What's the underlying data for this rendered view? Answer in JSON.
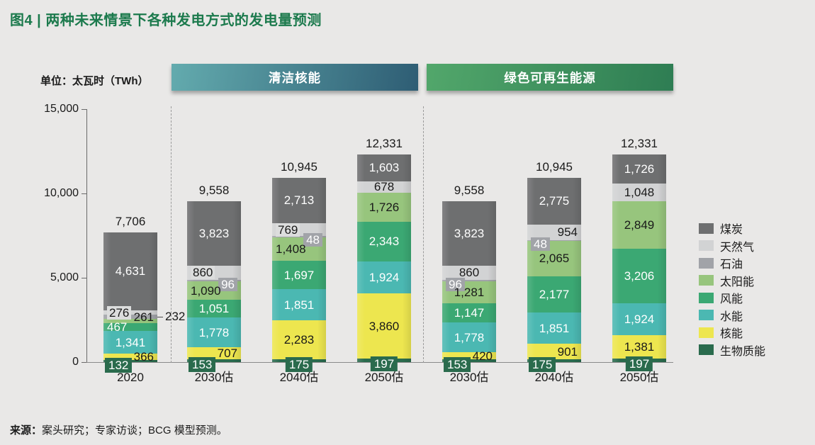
{
  "title": "图4 | 两种未来情景下各种发电方式的发电量预测",
  "unit_label": "单位：太瓦时（TWh）",
  "source": {
    "prefix": "来源：",
    "text": "案头研究；专家访谈；BCG 模型预测。"
  },
  "colors": {
    "background": "#e9e8e7",
    "title_green": "#1c7a4d",
    "axis": "#6a6a6a",
    "baseline": "#8a8a8a",
    "badge_dark_green": "#2a6b4d",
    "badge_gray": "#a1a3a8",
    "badge_light": "#dcdddd"
  },
  "scenario_banners": [
    {
      "label": "清洁核能",
      "gradient_from": "#63abae",
      "gradient_to": "#2e5d74"
    },
    {
      "label": "绿色可再生能源",
      "gradient_from": "#52a76b",
      "gradient_to": "#2e7d53"
    }
  ],
  "legend": [
    {
      "label": "煤炭",
      "color": "#6e6f70"
    },
    {
      "label": "天然气",
      "color": "#d2d3d4"
    },
    {
      "label": "石油",
      "color": "#a1a3a8"
    },
    {
      "label": "太阳能",
      "color": "#97c57d"
    },
    {
      "label": "风能",
      "color": "#3ba873"
    },
    {
      "label": "水能",
      "color": "#4bb8b2"
    },
    {
      "label": "核能",
      "color": "#ede64f"
    },
    {
      "label": "生物质能",
      "color": "#2a6b4d"
    }
  ],
  "chart_data": {
    "type": "bar",
    "subtype": "stacked",
    "ylim": [
      0,
      15000
    ],
    "grid": false,
    "legend_position": "right",
    "y_ticks": [
      {
        "value": 0,
        "label": "0"
      },
      {
        "value": 5000,
        "label": "5,000"
      },
      {
        "value": 10000,
        "label": "10,000"
      },
      {
        "value": 15000,
        "label": "15,000"
      }
    ],
    "categories": [
      "2020",
      "2030估",
      "2040估",
      "2050估",
      "2030估",
      "2040估",
      "2050估"
    ],
    "scenarios": [
      {
        "label": "清洁核能",
        "bars": [
          1,
          2,
          3
        ]
      },
      {
        "label": "绿色可再生能源",
        "bars": [
          4,
          5,
          6
        ]
      }
    ],
    "series": [
      {
        "name": "煤炭",
        "values": [
          4631,
          3823,
          2713,
          1603,
          3823,
          2775,
          1726
        ]
      },
      {
        "name": "天然气",
        "values": [
          276,
          860,
          769,
          678,
          860,
          954,
          1048
        ]
      },
      {
        "name": "石油",
        "values": [
          232,
          96,
          48,
          0,
          96,
          48,
          0
        ]
      },
      {
        "name": "太阳能",
        "values": [
          261,
          1090,
          1408,
          1726,
          1281,
          2065,
          2849
        ]
      },
      {
        "name": "风能",
        "values": [
          467,
          1051,
          1697,
          2343,
          1147,
          2177,
          3206
        ]
      },
      {
        "name": "水能",
        "values": [
          1341,
          1778,
          1851,
          1924,
          1778,
          1851,
          1924
        ]
      },
      {
        "name": "核能",
        "values": [
          366,
          707,
          2283,
          3860,
          420,
          901,
          1381
        ]
      },
      {
        "name": "生物质能",
        "values": [
          132,
          153,
          175,
          197,
          153,
          175,
          197
        ]
      }
    ],
    "bars": [
      {
        "category": "2020",
        "total": 7706,
        "total_label": "7,706",
        "segments": [
          {
            "name": "煤炭",
            "value": 4631,
            "label": "4,631",
            "style": "w c"
          },
          {
            "name": "天然气",
            "value": 276,
            "label": "276",
            "style": "k l bl"
          },
          {
            "name": "石油",
            "value": 232,
            "label": "232",
            "style": "out"
          },
          {
            "name": "太阳能",
            "value": 261,
            "label": "261",
            "style": "k r",
            "dy": -5
          },
          {
            "name": "风能",
            "value": 467,
            "label": "467",
            "style": "w l"
          },
          {
            "name": "水能",
            "value": 1341,
            "label": "1,341",
            "style": "w c"
          },
          {
            "name": "核能",
            "value": 366,
            "label": "366",
            "style": "k r"
          },
          {
            "name": "生物质能",
            "value": 132,
            "label": "132",
            "style": "w l bd"
          }
        ]
      },
      {
        "category": "2030估",
        "total": 9558,
        "total_label": "9,558",
        "segments": [
          {
            "name": "煤炭",
            "value": 3823,
            "label": "3,823",
            "style": "w c"
          },
          {
            "name": "天然气",
            "value": 860,
            "label": "860",
            "style": "k l bl"
          },
          {
            "name": "石油",
            "value": 96,
            "label": "96",
            "style": "w r bg",
            "dy": 5
          },
          {
            "name": "太阳能",
            "value": 1090,
            "label": "1,090",
            "style": "k l"
          },
          {
            "name": "风能",
            "value": 1051,
            "label": "1,051",
            "style": "w c"
          },
          {
            "name": "水能",
            "value": 1778,
            "label": "1,778",
            "style": "w c"
          },
          {
            "name": "核能",
            "value": 707,
            "label": "707",
            "style": "k r"
          },
          {
            "name": "生物质能",
            "value": 153,
            "label": "153",
            "style": "w l bd"
          }
        ]
      },
      {
        "category": "2040估",
        "total": 10945,
        "total_label": "10,945",
        "segments": [
          {
            "name": "煤炭",
            "value": 2713,
            "label": "2,713",
            "style": "w c"
          },
          {
            "name": "天然气",
            "value": 769,
            "label": "769",
            "style": "k l bl"
          },
          {
            "name": "石油",
            "value": 48,
            "label": "48",
            "style": "w r bg",
            "dy": 5
          },
          {
            "name": "太阳能",
            "value": 1408,
            "label": "1,408",
            "style": "k l"
          },
          {
            "name": "风能",
            "value": 1697,
            "label": "1,697",
            "style": "w c"
          },
          {
            "name": "水能",
            "value": 1851,
            "label": "1,851",
            "style": "w c"
          },
          {
            "name": "核能",
            "value": 2283,
            "label": "2,283",
            "style": "k c"
          },
          {
            "name": "生物质能",
            "value": 175,
            "label": "175",
            "style": "w c bd"
          }
        ]
      },
      {
        "category": "2050估",
        "total": 12331,
        "total_label": "12,331",
        "segments": [
          {
            "name": "煤炭",
            "value": 1603,
            "label": "1,603",
            "style": "w c"
          },
          {
            "name": "天然气",
            "value": 678,
            "label": "678",
            "style": "k c"
          },
          {
            "name": "石油",
            "value": 0
          },
          {
            "name": "太阳能",
            "value": 1726,
            "label": "1,726",
            "style": "k c"
          },
          {
            "name": "风能",
            "value": 2343,
            "label": "2,343",
            "style": "w c"
          },
          {
            "name": "水能",
            "value": 1924,
            "label": "1,924",
            "style": "w c"
          },
          {
            "name": "核能",
            "value": 3860,
            "label": "3,860",
            "style": "k c"
          },
          {
            "name": "生物质能",
            "value": 197,
            "label": "197",
            "style": "w c bd"
          }
        ]
      },
      {
        "category": "2030估",
        "total": 9558,
        "total_label": "9,558",
        "segments": [
          {
            "name": "煤炭",
            "value": 3823,
            "label": "3,823",
            "style": "w c"
          },
          {
            "name": "天然气",
            "value": 860,
            "label": "860",
            "style": "k c"
          },
          {
            "name": "石油",
            "value": 96,
            "label": "96",
            "style": "w l bg",
            "dy": 5
          },
          {
            "name": "太阳能",
            "value": 1281,
            "label": "1,281",
            "style": "k c"
          },
          {
            "name": "风能",
            "value": 1147,
            "label": "1,147",
            "style": "w c"
          },
          {
            "name": "水能",
            "value": 1778,
            "label": "1,778",
            "style": "w c"
          },
          {
            "name": "核能",
            "value": 420,
            "label": "420",
            "style": "k r"
          },
          {
            "name": "生物质能",
            "value": 153,
            "label": "153",
            "style": "w l bd"
          }
        ]
      },
      {
        "category": "2040估",
        "total": 10945,
        "total_label": "10,945",
        "segments": [
          {
            "name": "煤炭",
            "value": 2775,
            "label": "2,775",
            "style": "w c"
          },
          {
            "name": "天然气",
            "value": 954,
            "label": "954",
            "style": "k r"
          },
          {
            "name": "石油",
            "value": 48,
            "label": "48",
            "style": "w l bg",
            "dy": 5
          },
          {
            "name": "太阳能",
            "value": 2065,
            "label": "2,065",
            "style": "k c"
          },
          {
            "name": "风能",
            "value": 2177,
            "label": "2,177",
            "style": "w c"
          },
          {
            "name": "水能",
            "value": 1851,
            "label": "1,851",
            "style": "w c"
          },
          {
            "name": "核能",
            "value": 901,
            "label": "901",
            "style": "k r"
          },
          {
            "name": "生物质能",
            "value": 175,
            "label": "175",
            "style": "w l bd"
          }
        ]
      },
      {
        "category": "2050估",
        "total": 12331,
        "total_label": "12,331",
        "segments": [
          {
            "name": "煤炭",
            "value": 1726,
            "label": "1,726",
            "style": "w c"
          },
          {
            "name": "天然气",
            "value": 1048,
            "label": "1,048",
            "style": "k c"
          },
          {
            "name": "石油",
            "value": 0
          },
          {
            "name": "太阳能",
            "value": 2849,
            "label": "2,849",
            "style": "k c"
          },
          {
            "name": "风能",
            "value": 3206,
            "label": "3,206",
            "style": "w c"
          },
          {
            "name": "水能",
            "value": 1924,
            "label": "1,924",
            "style": "w c"
          },
          {
            "name": "核能",
            "value": 1381,
            "label": "1,381",
            "style": "k c"
          },
          {
            "name": "生物质能",
            "value": 197,
            "label": "197",
            "style": "w c bd"
          }
        ]
      }
    ]
  }
}
